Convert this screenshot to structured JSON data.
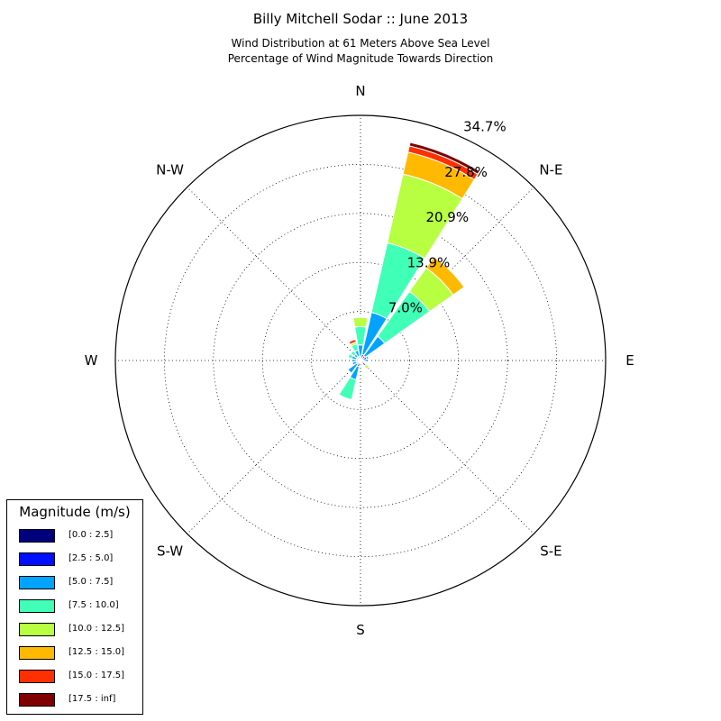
{
  "title": "Billy Mitchell Sodar :: June 2013",
  "subtitle_lines": [
    "Wind Distribution at 61 Meters Above Sea Level",
    "Percentage of Wind Magnitude Towards Direction"
  ],
  "chart_data": {
    "type": "windrose",
    "title": "Billy Mitchell Sodar :: June 2013",
    "subtitle": "Wind Distribution at 61 Meters Above Sea Level / Percentage of Wind Magnitude Towards Direction",
    "direction_labels": [
      "N",
      "N-E",
      "E",
      "S-E",
      "S",
      "S-W",
      "W",
      "N-W"
    ],
    "radial_ticks": [
      6.95,
      13.9,
      20.85,
      27.8,
      34.75
    ],
    "radial_tick_labels": [
      "7.0%",
      "13.9%",
      "20.9%",
      "27.8%",
      "34.7%"
    ],
    "radial_max": 34.75,
    "grid": true,
    "legend_position": "bottom-left",
    "legend_title": "Magnitude (m/s)",
    "bins": [
      "[0.0 : 2.5]",
      "[2.5 : 5.0]",
      "[5.0 : 7.5]",
      "[7.5 : 10.0]",
      "[10.0 : 12.5]",
      "[12.5 : 15.0]",
      "[15.0 : 17.5]",
      "[17.5 : inf]"
    ],
    "colors": [
      "#00007f",
      "#0010ff",
      "#00a4ff",
      "#40ffb7",
      "#b7ff40",
      "#ffb900",
      "#ff3000",
      "#7f0000"
    ],
    "direction_width_deg": 22.5,
    "series": [
      {
        "direction_deg": 0,
        "values": [
          0.2,
          0.4,
          1.6,
          2.6,
          1.3,
          0.0,
          0.1,
          0.0
        ]
      },
      {
        "direction_deg": 22.5,
        "values": [
          0.2,
          0.7,
          6.1,
          10.1,
          10.0,
          3.2,
          0.9,
          0.5
        ]
      },
      {
        "direction_deg": 45,
        "values": [
          0.2,
          0.6,
          3.4,
          7.8,
          4.1,
          1.9,
          0.0,
          0.0
        ]
      },
      {
        "direction_deg": 67.5,
        "values": [
          0.3,
          0.6,
          0.3,
          0.0,
          0.0,
          0.0,
          0.0,
          0.0
        ]
      },
      {
        "direction_deg": 90,
        "values": [
          0.2,
          0.3,
          0.6,
          0.0,
          0.0,
          0.0,
          0.0,
          0.0
        ]
      },
      {
        "direction_deg": 112.5,
        "values": [
          0.2,
          0.3,
          0.0,
          0.0,
          0.0,
          0.0,
          0.0,
          0.0
        ]
      },
      {
        "direction_deg": 135,
        "values": [
          0.3,
          0.6,
          0.0,
          0.0,
          0.6,
          0.0,
          0.0,
          0.0
        ]
      },
      {
        "direction_deg": 157.5,
        "values": [
          0.2,
          0.3,
          0.0,
          0.0,
          0.0,
          0.0,
          0.0,
          0.0
        ]
      },
      {
        "direction_deg": 180,
        "values": [
          0.2,
          0.3,
          0.0,
          0.0,
          0.0,
          0.0,
          0.0,
          0.0
        ]
      },
      {
        "direction_deg": 202.5,
        "values": [
          0.3,
          0.6,
          1.9,
          2.9,
          0.0,
          0.0,
          0.0,
          0.0
        ]
      },
      {
        "direction_deg": 225,
        "values": [
          0.2,
          0.4,
          1.6,
          0.0,
          0.0,
          0.0,
          0.0,
          0.0
        ]
      },
      {
        "direction_deg": 247.5,
        "values": [
          0.2,
          0.4,
          0.6,
          0.0,
          0.0,
          0.0,
          0.0,
          0.0
        ]
      },
      {
        "direction_deg": 270,
        "values": [
          0.2,
          0.4,
          0.6,
          0.0,
          0.0,
          0.0,
          0.0,
          0.0
        ]
      },
      {
        "direction_deg": 292.5,
        "values": [
          0.2,
          0.4,
          0.7,
          0.5,
          0.0,
          0.0,
          0.0,
          0.0
        ]
      },
      {
        "direction_deg": 315,
        "values": [
          0.2,
          0.4,
          0.5,
          0.6,
          0.0,
          0.0,
          0.0,
          0.0
        ]
      },
      {
        "direction_deg": 337.5,
        "values": [
          0.2,
          0.4,
          0.9,
          0.9,
          0.3,
          0.0,
          0.4,
          0.0
        ]
      }
    ]
  }
}
